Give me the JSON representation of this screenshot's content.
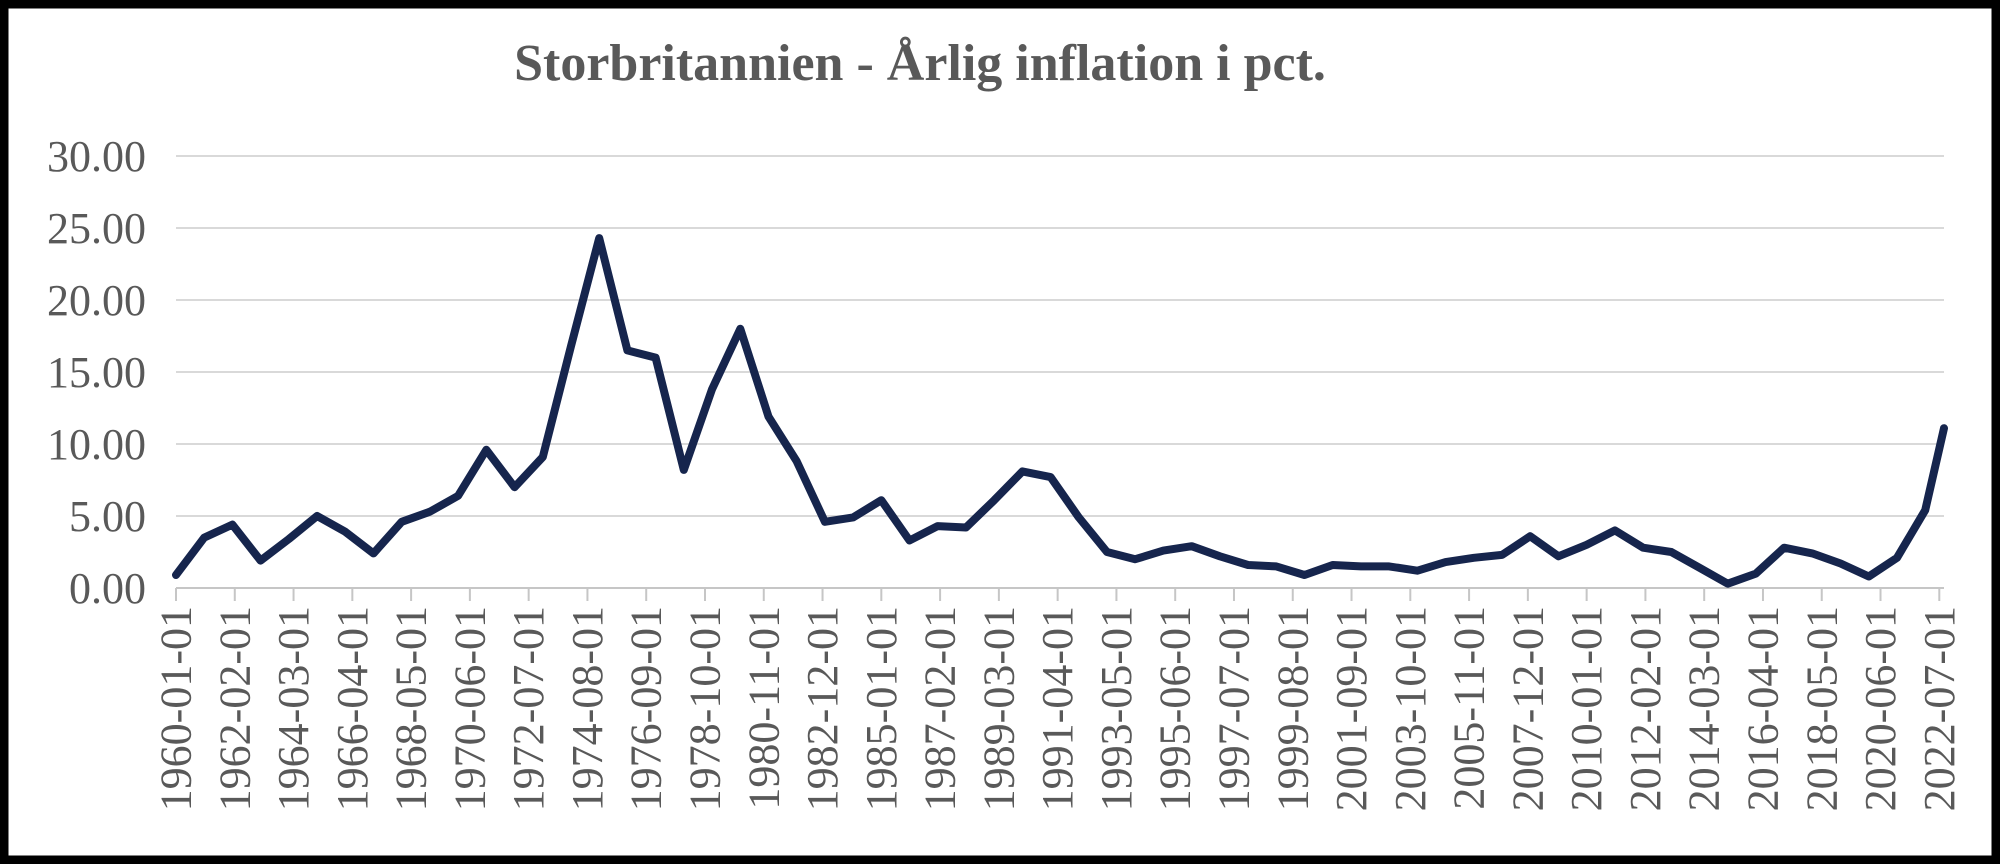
{
  "chart_data": {
    "type": "line",
    "title": "Storbritannien - Årlig inflation i pct.",
    "xlabel": "",
    "ylabel": "",
    "ylim": [
      0,
      30
    ],
    "y_tick_interval": 5,
    "y_tick_labels": [
      "0.00",
      "5.00",
      "10.00",
      "15.00",
      "20.00",
      "25.00",
      "30.00"
    ],
    "x_tick_labels": [
      "1960-01-01",
      "1962-02-01",
      "1964-03-01",
      "1966-04-01",
      "1968-05-01",
      "1970-06-01",
      "1972-07-01",
      "1974-08-01",
      "1976-09-01",
      "1978-10-01",
      "1980-11-01",
      "1982-12-01",
      "1985-01-01",
      "1987-02-01",
      "1989-03-01",
      "1991-04-01",
      "1993-05-01",
      "1995-06-01",
      "1997-07-01",
      "1999-08-01",
      "2001-09-01",
      "2003-10-01",
      "2005-11-01",
      "2007-12-01",
      "2010-01-01",
      "2012-02-01",
      "2014-03-01",
      "2016-04-01",
      "2018-05-01",
      "2020-06-01",
      "2022-07-01"
    ],
    "x_tick_interval_months": 25,
    "x_axis_start": "1960-01",
    "x_axis_span_months": 752,
    "grid": "horizontal-only",
    "legend": "none",
    "colors": {
      "line": "#16254d",
      "labels": "#595959",
      "gridlines": "#d9d9d9",
      "axis": "#c6c6c6",
      "frame": "#000000",
      "background": "#ffffff"
    },
    "series": [
      {
        "name": "Årlig inflation i pct.",
        "points": [
          {
            "date": "1960-01-01",
            "value": 0.9
          },
          {
            "date": "1961-01-01",
            "value": 3.5
          },
          {
            "date": "1962-01-01",
            "value": 4.4
          },
          {
            "date": "1963-01-01",
            "value": 1.9
          },
          {
            "date": "1964-01-01",
            "value": 3.4
          },
          {
            "date": "1965-01-01",
            "value": 5.0
          },
          {
            "date": "1966-01-01",
            "value": 3.9
          },
          {
            "date": "1967-01-01",
            "value": 2.4
          },
          {
            "date": "1968-01-01",
            "value": 4.6
          },
          {
            "date": "1969-01-01",
            "value": 5.3
          },
          {
            "date": "1970-01-01",
            "value": 6.4
          },
          {
            "date": "1971-01-01",
            "value": 9.6
          },
          {
            "date": "1972-01-01",
            "value": 7.0
          },
          {
            "date": "1973-01-01",
            "value": 9.1
          },
          {
            "date": "1974-01-01",
            "value": 16.8
          },
          {
            "date": "1975-01-01",
            "value": 24.3
          },
          {
            "date": "1976-01-01",
            "value": 16.5
          },
          {
            "date": "1977-01-01",
            "value": 16.0
          },
          {
            "date": "1978-01-01",
            "value": 8.2
          },
          {
            "date": "1979-01-01",
            "value": 13.8
          },
          {
            "date": "1980-01-01",
            "value": 18.0
          },
          {
            "date": "1981-01-01",
            "value": 11.9
          },
          {
            "date": "1982-01-01",
            "value": 8.8
          },
          {
            "date": "1983-01-01",
            "value": 4.6
          },
          {
            "date": "1984-01-01",
            "value": 4.9
          },
          {
            "date": "1985-01-01",
            "value": 6.1
          },
          {
            "date": "1986-01-01",
            "value": 3.3
          },
          {
            "date": "1987-01-01",
            "value": 4.3
          },
          {
            "date": "1988-01-01",
            "value": 4.2
          },
          {
            "date": "1989-01-01",
            "value": 6.1
          },
          {
            "date": "1990-01-01",
            "value": 8.1
          },
          {
            "date": "1991-01-01",
            "value": 7.7
          },
          {
            "date": "1992-01-01",
            "value": 4.9
          },
          {
            "date": "1993-01-01",
            "value": 2.5
          },
          {
            "date": "1994-01-01",
            "value": 2.0
          },
          {
            "date": "1995-01-01",
            "value": 2.6
          },
          {
            "date": "1996-01-01",
            "value": 2.9
          },
          {
            "date": "1997-01-01",
            "value": 2.2
          },
          {
            "date": "1998-01-01",
            "value": 1.6
          },
          {
            "date": "1999-01-01",
            "value": 1.5
          },
          {
            "date": "2000-01-01",
            "value": 0.9
          },
          {
            "date": "2001-01-01",
            "value": 1.6
          },
          {
            "date": "2002-01-01",
            "value": 1.5
          },
          {
            "date": "2003-01-01",
            "value": 1.5
          },
          {
            "date": "2004-01-01",
            "value": 1.2
          },
          {
            "date": "2005-01-01",
            "value": 1.8
          },
          {
            "date": "2006-01-01",
            "value": 2.1
          },
          {
            "date": "2007-01-01",
            "value": 2.3
          },
          {
            "date": "2008-01-01",
            "value": 3.6
          },
          {
            "date": "2009-01-01",
            "value": 2.2
          },
          {
            "date": "2010-01-01",
            "value": 3.0
          },
          {
            "date": "2011-01-01",
            "value": 4.0
          },
          {
            "date": "2012-01-01",
            "value": 2.8
          },
          {
            "date": "2013-01-01",
            "value": 2.5
          },
          {
            "date": "2014-01-01",
            "value": 1.4
          },
          {
            "date": "2015-01-01",
            "value": 0.3
          },
          {
            "date": "2016-01-01",
            "value": 1.0
          },
          {
            "date": "2017-01-01",
            "value": 2.8
          },
          {
            "date": "2018-01-01",
            "value": 2.4
          },
          {
            "date": "2019-01-01",
            "value": 1.7
          },
          {
            "date": "2020-01-01",
            "value": 0.8
          },
          {
            "date": "2021-01-01",
            "value": 2.1
          },
          {
            "date": "2022-01-01",
            "value": 5.4
          },
          {
            "date": "2022-09-01",
            "value": 11.1
          }
        ]
      }
    ]
  }
}
